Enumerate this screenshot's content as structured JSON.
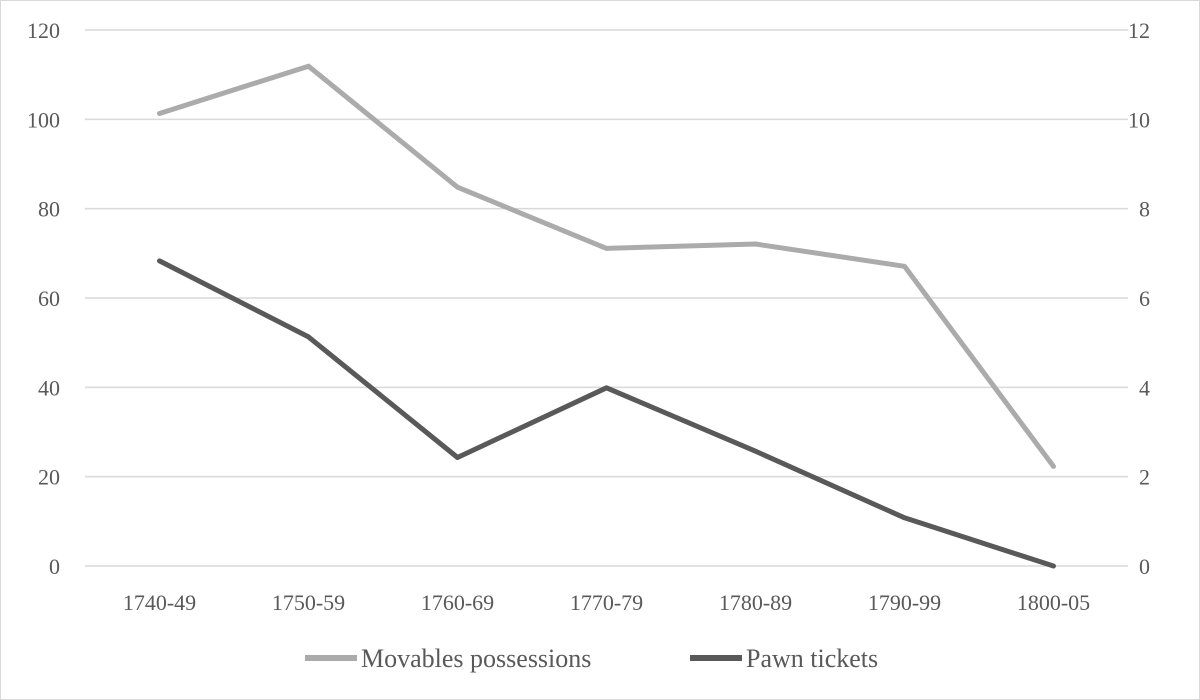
{
  "chart_data": {
    "type": "line",
    "categories": [
      "1740-49",
      "1750-59",
      "1760-69",
      "1770-79",
      "1780-89",
      "1790-99",
      "1800-05"
    ],
    "series": [
      {
        "name": "Movables possessions",
        "axis": "left",
        "color": "#ababab",
        "values": [
          101.3,
          111.9,
          84.8,
          71.1,
          72.1,
          67.1,
          22.3
        ]
      },
      {
        "name": "Pawn tickets",
        "axis": "right",
        "color": "#595959",
        "values": [
          6.83,
          5.13,
          2.43,
          3.99,
          2.57,
          1.08,
          0.0
        ]
      }
    ],
    "y_left": {
      "min": 0,
      "max": 120,
      "ticks": [
        "0",
        "20",
        "40",
        "60",
        "80",
        "100",
        "120"
      ]
    },
    "y_right": {
      "min": 0,
      "max": 12,
      "ticks": [
        "0",
        "2",
        "4",
        "6",
        "8",
        "10",
        "12"
      ]
    },
    "grid": true,
    "legend_position": "bottom"
  }
}
